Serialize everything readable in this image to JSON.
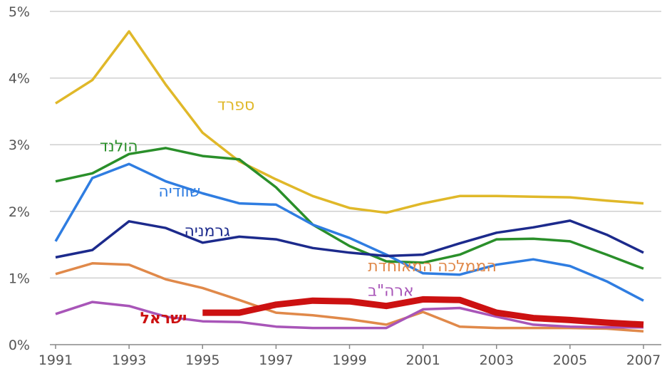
{
  "chart_data": {
    "type": "line",
    "x": [
      1991,
      1992,
      1993,
      1994,
      1995,
      1996,
      1997,
      1998,
      1999,
      2000,
      2001,
      2002,
      2003,
      2004,
      2005,
      2006,
      2007
    ],
    "xticks": [
      "1991",
      "1993",
      "1995",
      "1997",
      "1999",
      "2001",
      "2003",
      "2005",
      "2007"
    ],
    "yticks": [
      "0%",
      "1%",
      "2%",
      "3%",
      "4%",
      "5%"
    ],
    "ylim": [
      0,
      5
    ],
    "xlim": [
      1991,
      2007
    ],
    "grid": true,
    "series": [
      {
        "name": "ספרד",
        "color": "#e0b829",
        "values": [
          3.62,
          3.97,
          4.7,
          3.9,
          3.18,
          2.75,
          2.48,
          2.23,
          2.05,
          1.98,
          2.12,
          2.23,
          2.23,
          2.22,
          2.21,
          2.16,
          2.12
        ]
      },
      {
        "name": "הולנד",
        "color": "#2a8f2a",
        "values": [
          2.45,
          2.57,
          2.86,
          2.95,
          2.83,
          2.78,
          2.36,
          1.8,
          1.48,
          1.25,
          1.23,
          1.35,
          1.58,
          1.59,
          1.55,
          1.35,
          1.14
        ]
      },
      {
        "name": "שוודיה",
        "color": "#2f7de1",
        "values": [
          1.55,
          2.5,
          2.71,
          2.45,
          2.27,
          2.12,
          2.1,
          1.8,
          1.6,
          1.35,
          1.07,
          1.05,
          1.2,
          1.28,
          1.18,
          0.95,
          0.66
        ]
      },
      {
        "name": "גרמניה",
        "color": "#1c2a8c",
        "values": [
          1.31,
          1.42,
          1.85,
          1.75,
          1.53,
          1.62,
          1.58,
          1.45,
          1.38,
          1.33,
          1.35,
          1.52,
          1.68,
          1.76,
          1.86,
          1.65,
          1.38
        ]
      },
      {
        "name": "הממלכה המאוחדת",
        "color": "#e0894a",
        "values": [
          1.06,
          1.22,
          1.2,
          0.98,
          0.85,
          0.67,
          0.48,
          0.44,
          0.38,
          0.3,
          0.49,
          0.27,
          0.25,
          0.25,
          0.25,
          0.24,
          0.2
        ]
      },
      {
        "name": "ארה\"ב",
        "color": "#a855b8",
        "values": [
          0.46,
          0.64,
          0.58,
          0.42,
          0.35,
          0.34,
          0.27,
          0.25,
          0.25,
          0.25,
          0.53,
          0.55,
          0.42,
          0.3,
          0.27,
          0.26,
          0.26
        ]
      },
      {
        "name": "ישראל",
        "color": "#cc1111",
        "values": [
          null,
          null,
          null,
          null,
          0.48,
          0.48,
          0.6,
          0.66,
          0.65,
          0.58,
          0.68,
          0.67,
          0.48,
          0.4,
          0.37,
          0.33,
          0.3
        ]
      }
    ]
  }
}
